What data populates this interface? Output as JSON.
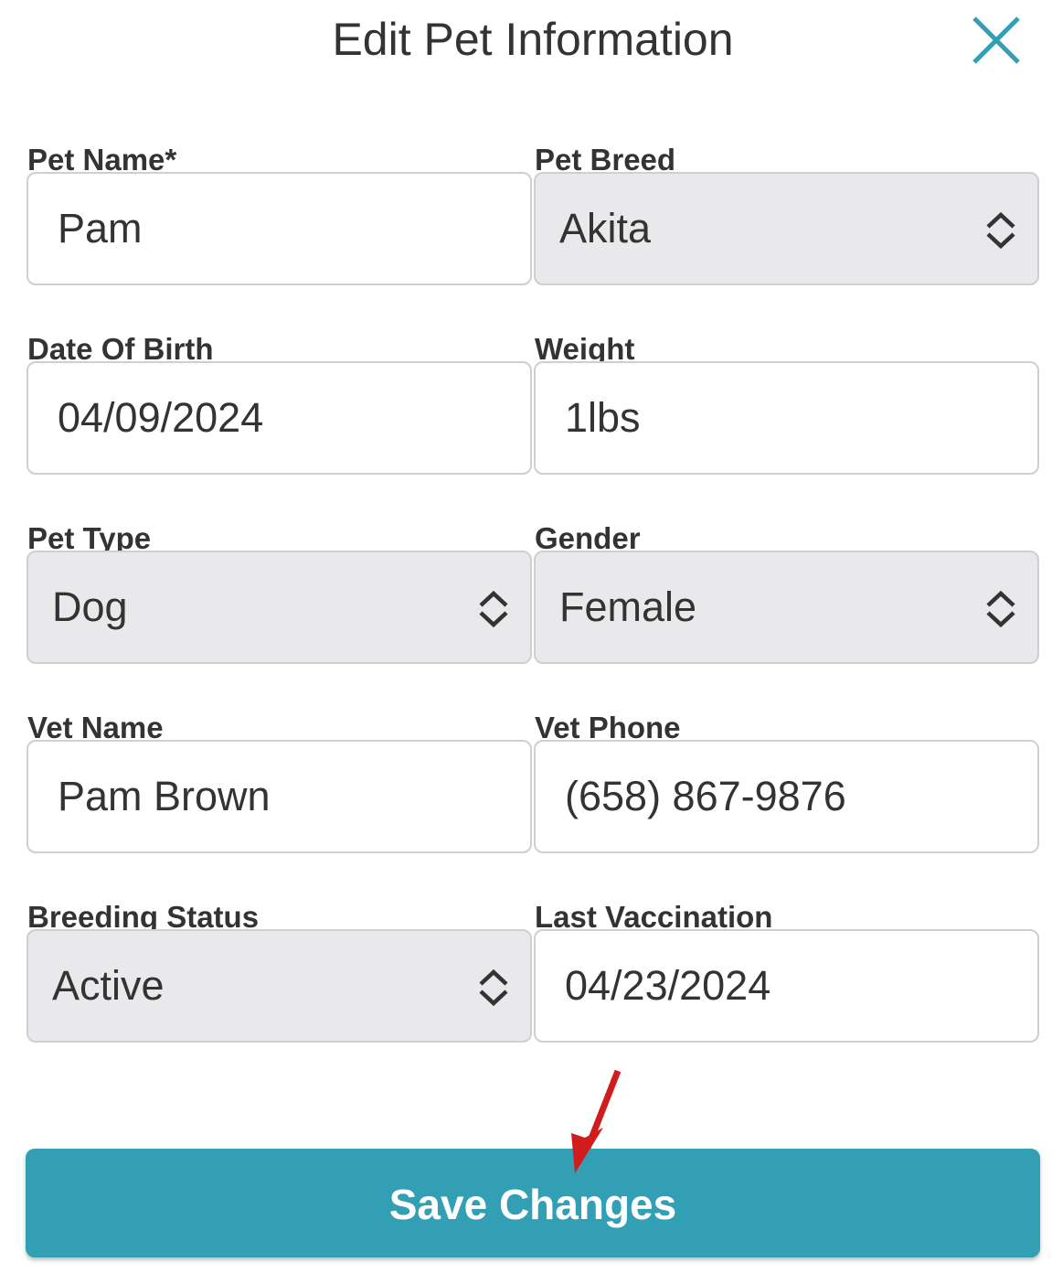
{
  "header": {
    "title": "Edit Pet Information",
    "close_icon": "close-icon",
    "accent": "#329fb5"
  },
  "fields": [
    {
      "label": "Pet Name*",
      "value": "Pam",
      "type": "text"
    },
    {
      "label": "Pet Breed",
      "value": "Akita",
      "type": "select"
    },
    {
      "label": "Date Of Birth",
      "value": "04/09/2024",
      "type": "text"
    },
    {
      "label": "Weight",
      "value": "1lbs",
      "type": "text"
    },
    {
      "label": "Pet Type",
      "value": "Dog",
      "type": "select"
    },
    {
      "label": "Gender",
      "value": "Female",
      "type": "select"
    },
    {
      "label": "Vet Name",
      "value": "Pam Brown",
      "type": "text"
    },
    {
      "label": "Vet Phone",
      "value": "(658) 867-9876",
      "type": "text"
    },
    {
      "label": "Breeding Status",
      "value": "Active",
      "type": "select"
    },
    {
      "label": "Last Vaccination",
      "value": "04/23/2024",
      "type": "text"
    }
  ],
  "save_button": {
    "label": "Save Changes",
    "color": "#329fb5"
  },
  "annotation": {
    "icon": "red-arrow-icon",
    "color": "#d01c1c"
  }
}
